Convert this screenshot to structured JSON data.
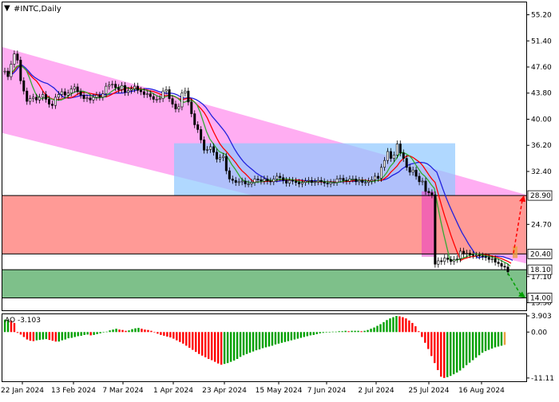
{
  "header": {
    "menu_glyph": "▼",
    "title": "#INTC,Daily"
  },
  "colors": {
    "channel": "#ff9ff0",
    "box": "#8fc8ff",
    "resistance_zone": "#ff9a96",
    "support_zone": "#7ec08a",
    "ma_fast": "#ff0000",
    "ma_mid": "#33aa33",
    "ma_slow": "#2222dd",
    "ao_up": "#00a000",
    "ao_down": "#ff0000",
    "forecast_up": "#ff0000",
    "forecast_down": "#00a000",
    "current_bar": "#e8a040",
    "candles": "#000000"
  },
  "chart_data": [
    {
      "type": "candlestick",
      "symbol": "#INTC",
      "timeframe": "Daily",
      "x_labels": [
        "22 Jan 2024",
        "13 Feb 2024",
        "7 Mar 2024",
        "1 Apr 2024",
        "23 Apr 2024",
        "15 May 2024",
        "7 Jun 2024",
        "2 Jul 2024",
        "25 Jul 2024",
        "16 Aug 2024"
      ],
      "y_ticks": [
        "55.20",
        "51.40",
        "47.60",
        "43.80",
        "40.00",
        "36.20",
        "32.40",
        "24.70",
        "17.10",
        "13.30"
      ],
      "ylim": [
        12.2,
        57.0
      ],
      "levels": [
        {
          "name": "resistance",
          "value": 28.9,
          "label": "28.90"
        },
        {
          "name": "pivot",
          "value": 20.4,
          "label": "20.40"
        },
        {
          "name": "support",
          "value": 18.1,
          "label": "18.10"
        },
        {
          "name": "target",
          "value": 14.0,
          "label": "14.00"
        }
      ],
      "zones": [
        {
          "name": "resistance-zone",
          "from": 20.4,
          "to": 28.9
        },
        {
          "name": "support-zone",
          "from": 14.0,
          "to": 18.1
        }
      ],
      "channel": {
        "upper_start": 50.5,
        "upper_end": 29.0,
        "lower_start": 38.0,
        "lower_end": 19.0
      },
      "box": {
        "from": 28.9,
        "to": 36.5
      },
      "close": [
        47.0,
        46.2,
        48.0,
        49.5,
        48.6,
        45.6,
        44.1,
        42.6,
        43.0,
        43.2,
        42.8,
        43.2,
        43.6,
        42.9,
        42.2,
        42.0,
        43.2,
        43.6,
        44.0,
        43.5,
        43.8,
        44.4,
        44.7,
        44.0,
        43.5,
        43.0,
        43.1,
        42.8,
        43.2,
        43.5,
        43.2,
        43.7,
        44.8,
        45.0,
        45.1,
        44.6,
        44.3,
        44.9,
        43.9,
        44.2,
        44.4,
        44.8,
        44.2,
        44.0,
        43.6,
        43.7,
        43.3,
        42.9,
        42.9,
        43.0,
        44.1,
        44.3,
        43.0,
        42.2,
        41.5,
        41.8,
        43.8,
        44.1,
        42.5,
        40.8,
        39.2,
        38.5,
        37.0,
        35.5,
        35.6,
        36.0,
        35.2,
        34.2,
        34.4,
        34.6,
        32.5,
        31.3,
        31.1,
        30.8,
        30.9,
        31.0,
        30.6,
        30.6,
        30.8,
        31.3,
        31.2,
        31.0,
        31.3,
        31.0,
        30.9,
        31.3,
        31.7,
        31.5,
        31.1,
        30.7,
        31.1,
        31.0,
        30.8,
        30.6,
        30.8,
        31.0,
        31.1,
        30.8,
        30.9,
        31.1,
        30.9,
        30.7,
        30.6,
        30.8,
        30.8,
        31.3,
        31.4,
        31.1,
        31.0,
        31.3,
        31.3,
        30.9,
        31.1,
        30.8,
        30.8,
        31.0,
        31.2,
        31.7,
        31.4,
        33.0,
        34.0,
        35.3,
        34.3,
        34.8,
        36.4,
        35.1,
        34.3,
        33.0,
        32.3,
        32.6,
        31.7,
        30.9,
        31.0,
        29.5,
        29.3,
        29.0,
        18.9,
        19.4,
        19.3,
        19.8,
        19.6,
        19.3,
        19.6,
        19.7,
        20.8,
        20.4,
        20.5,
        20.3,
        20.2,
        20.2,
        20.1,
        20.0,
        19.9,
        19.6,
        19.7,
        19.2,
        19.0,
        18.6,
        18.5,
        17.8
      ],
      "ma_fast_end": 20.5,
      "ma_mid_end": 19.6,
      "ma_slow_end": 22.3,
      "forecast": {
        "up_target": 28.9,
        "down_target": 14.0
      }
    },
    {
      "type": "bar",
      "name": "AO",
      "label": "AO -3.103",
      "y_ticks": [
        "3.903",
        "0.00",
        "-11.11"
      ],
      "ylim": [
        -11.9,
        4.3
      ],
      "values": [
        3.0,
        3.0,
        2.8,
        2.2,
        -0.2,
        -0.6,
        -1.2,
        -1.8,
        -2.1,
        -2.2,
        -2.0,
        -1.9,
        -1.8,
        -1.7,
        -1.9,
        -2.1,
        -2.3,
        -2.3,
        -2.0,
        -1.8,
        -1.5,
        -1.4,
        -1.2,
        -1.0,
        -0.9,
        -0.7,
        -0.6,
        -0.8,
        -0.7,
        -0.5,
        -0.3,
        -0.1,
        0.1,
        0.4,
        0.6,
        0.8,
        0.6,
        0.5,
        0.3,
        0.4,
        0.7,
        0.9,
        1.0,
        0.8,
        0.6,
        0.5,
        0.3,
        -0.1,
        -0.4,
        -0.7,
        -0.9,
        -1.1,
        -1.3,
        -1.6,
        -2.0,
        -2.4,
        -2.8,
        -3.3,
        -3.8,
        -4.3,
        -4.8,
        -5.3,
        -5.7,
        -6.1,
        -6.5,
        -6.8,
        -7.2,
        -7.6,
        -7.9,
        -7.7,
        -7.5,
        -7.2,
        -6.9,
        -6.5,
        -6.0,
        -5.6,
        -5.3,
        -5.0,
        -4.7,
        -4.4,
        -4.2,
        -3.9,
        -3.7,
        -3.5,
        -3.3,
        -3.0,
        -2.8,
        -2.6,
        -2.4,
        -2.2,
        -2.0,
        -1.8,
        -1.6,
        -1.4,
        -1.2,
        -1.0,
        -0.8,
        -0.7,
        -0.5,
        -0.3,
        -0.2,
        -0.1,
        0.0,
        0.1,
        0.1,
        0.2,
        0.2,
        0.3,
        0.2,
        0.3,
        0.3,
        0.3,
        0.2,
        0.3,
        0.5,
        0.8,
        1.1,
        1.5,
        1.9,
        2.4,
        2.9,
        3.3,
        3.6,
        3.9,
        3.8,
        3.6,
        3.3,
        2.8,
        2.2,
        1.4,
        0.2,
        -1.2,
        -2.6,
        -4.1,
        -5.8,
        -7.5,
        -9.2,
        -10.8,
        -11.1,
        -10.9,
        -10.6,
        -10.2,
        -9.8,
        -9.3,
        -8.7,
        -8.0,
        -7.4,
        -6.8,
        -6.2,
        -5.6,
        -5.0,
        -4.6,
        -4.3,
        -4.0,
        -3.7,
        -3.5,
        -3.3,
        -3.103
      ]
    }
  ]
}
